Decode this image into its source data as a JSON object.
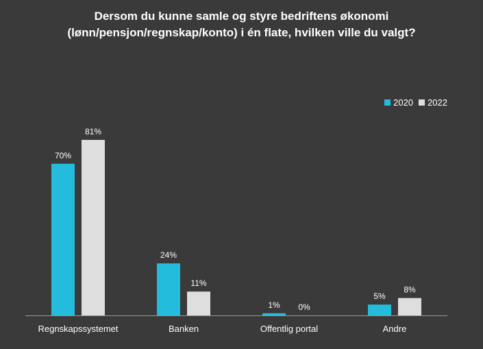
{
  "title_lines": [
    "Dersom du kunne samle og styre bedriftens økonomi",
    "(lønn/pensjon/regnskap/konto) i én flate, hvilken ville du valgt?"
  ],
  "colors": {
    "background": "#3a3a3a",
    "series_2020": "#24bcdc",
    "series_2022": "#dedede",
    "text": "#ffffff",
    "axis": "#9a9a9a"
  },
  "chart_data": {
    "type": "bar",
    "title": "Dersom du kunne samle og styre bedriftens økonomi (lønn/pensjon/regnskap/konto) i én flate, hvilken ville du valgt?",
    "categories": [
      "Regnskapssystemet",
      "Banken",
      "Offentlig portal",
      "Andre"
    ],
    "series": [
      {
        "name": "2020",
        "values": [
          70,
          24,
          1,
          5
        ],
        "labels": [
          "70%",
          "24%",
          "1%",
          "5%"
        ]
      },
      {
        "name": "2022",
        "values": [
          81,
          11,
          0,
          8
        ],
        "labels": [
          "81%",
          "11%",
          "0%",
          "8%"
        ]
      }
    ],
    "ylim": [
      0,
      100
    ],
    "grid": false,
    "legend": "top-right",
    "xlabel": "",
    "ylabel": ""
  }
}
